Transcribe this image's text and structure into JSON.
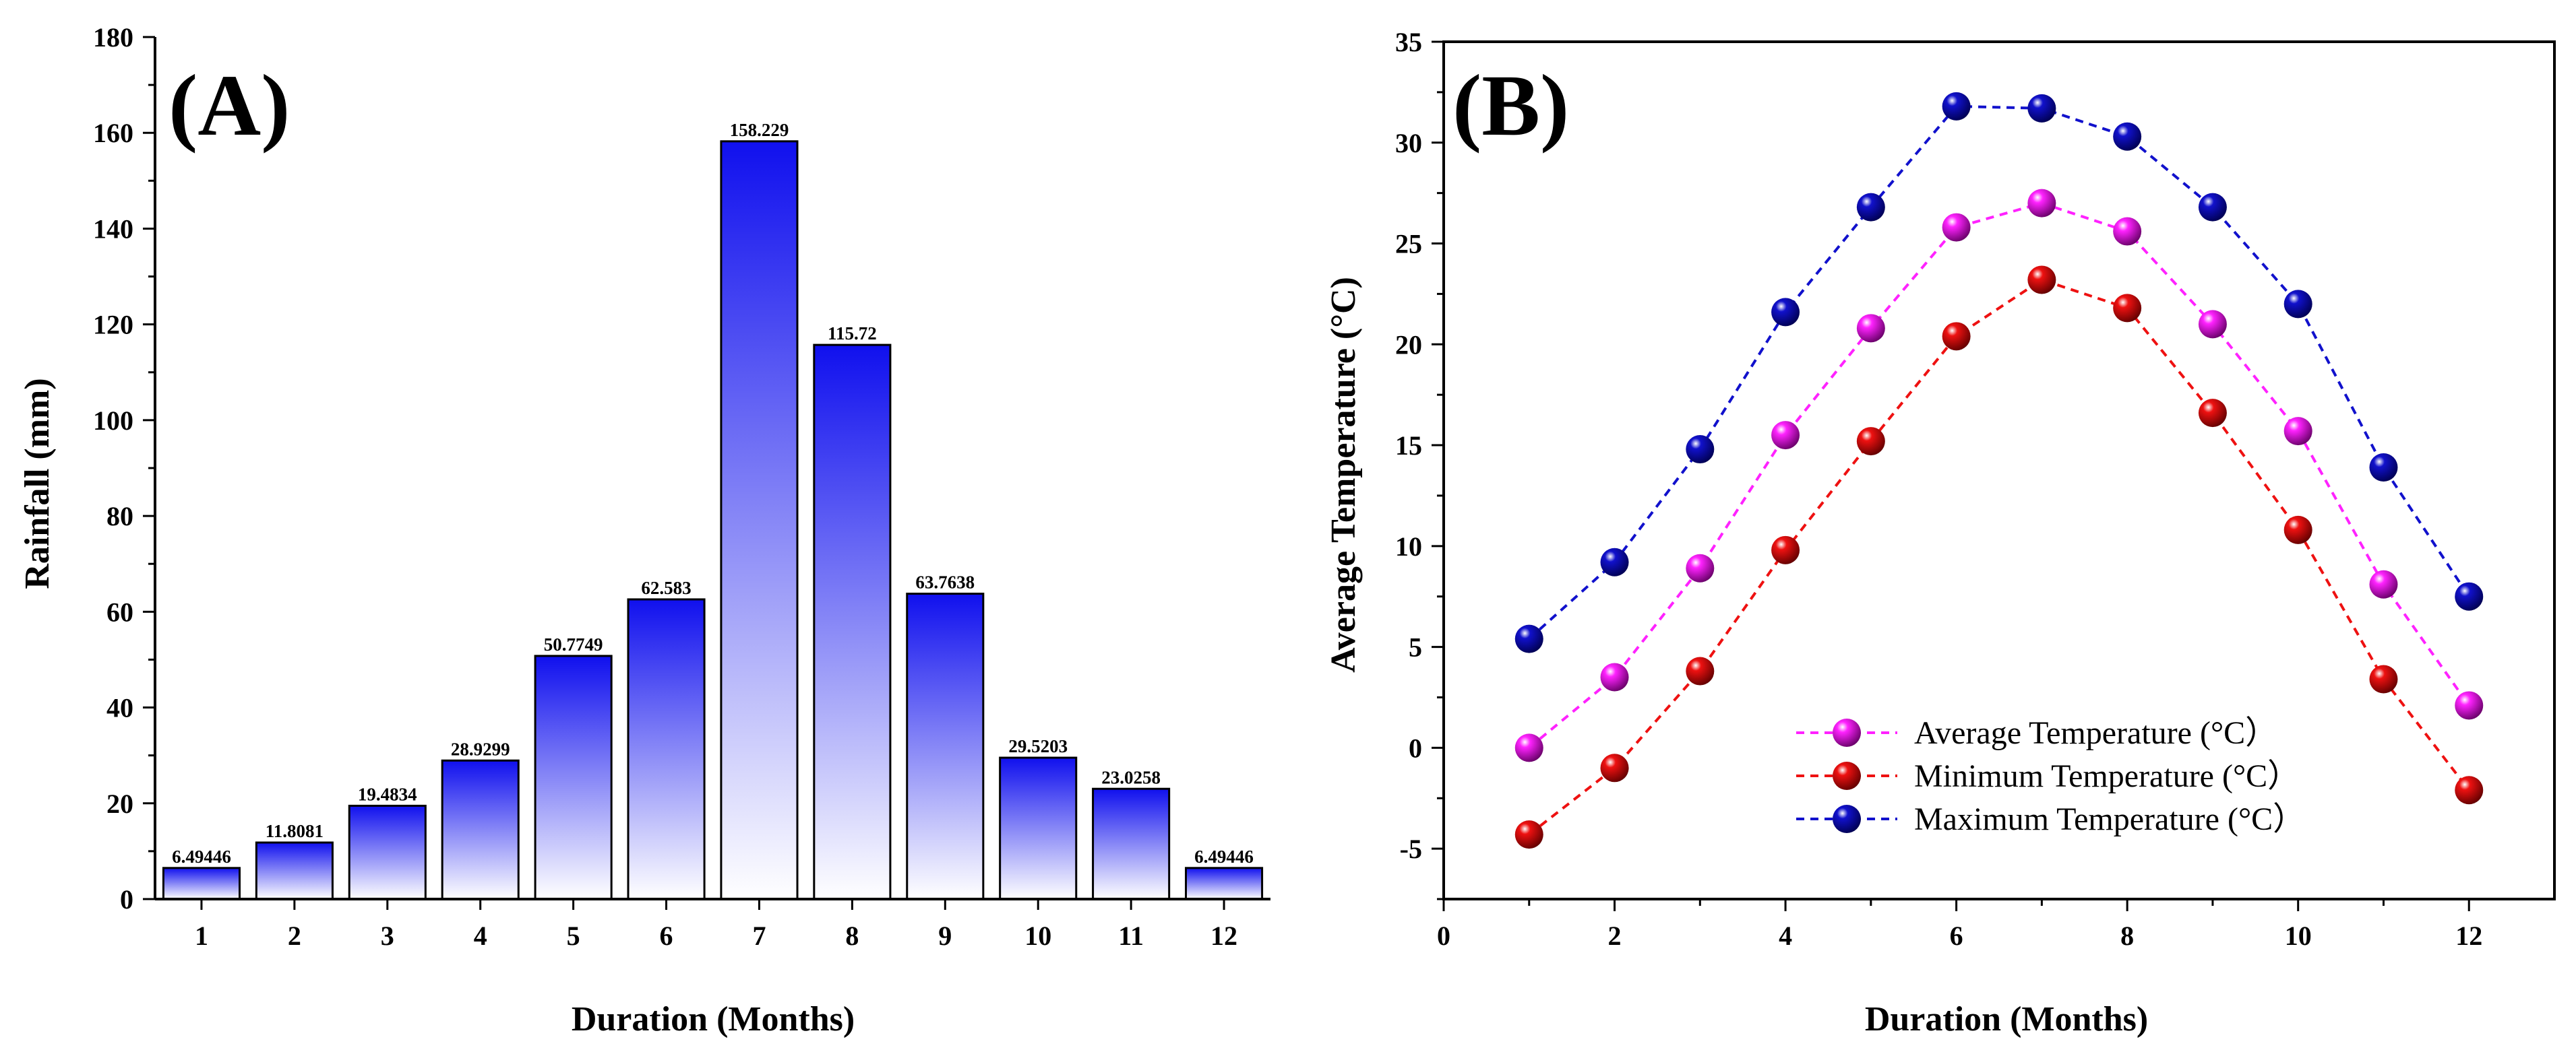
{
  "chart_data": [
    {
      "type": "bar",
      "panel_label": "(A)",
      "xlabel": "Duration (Months)",
      "ylabel": "Rainfall (mm)",
      "categories": [
        "1",
        "2",
        "3",
        "4",
        "5",
        "6",
        "7",
        "8",
        "9",
        "10",
        "11",
        "12"
      ],
      "values": [
        6.49446,
        11.8081,
        19.4834,
        28.9299,
        50.7749,
        62.583,
        158.229,
        115.72,
        63.7638,
        29.5203,
        23.0258,
        6.49446
      ],
      "value_labels": [
        "6.49446",
        "11.8081",
        "19.4834",
        "28.9299",
        "50.7749",
        "62.583",
        "158.229",
        "115.72",
        "63.7638",
        "29.5203",
        "23.0258",
        "6.49446"
      ],
      "ylim": [
        0,
        180
      ],
      "yticks": [
        0,
        20,
        40,
        60,
        80,
        100,
        120,
        140,
        160,
        180
      ],
      "ytick_labels": [
        "0",
        "20",
        "40",
        "60",
        "80",
        "100",
        "120",
        "140",
        "160",
        "180"
      ],
      "grid": false,
      "colors": {
        "bar_top": "#1010ee",
        "bar_bottom": "#ffffff",
        "bar_edge": "#000000"
      }
    },
    {
      "type": "line",
      "panel_label": "(B)",
      "xlabel": "Duration (Months)",
      "ylabel": "Average Temperature (°C)",
      "xlim": [
        0,
        13
      ],
      "ylim": [
        -7.5,
        35
      ],
      "xticks": [
        0,
        2,
        4,
        6,
        8,
        10,
        12
      ],
      "xtick_labels": [
        "0",
        "2",
        "4",
        "6",
        "8",
        "10",
        "12"
      ],
      "yticks": [
        -5,
        0,
        5,
        10,
        15,
        20,
        25,
        30,
        35
      ],
      "ytick_labels": [
        "-5",
        "0",
        "5",
        "10",
        "15",
        "20",
        "25",
        "30",
        "35"
      ],
      "x": [
        1,
        2,
        3,
        4,
        5,
        6,
        7,
        8,
        9,
        10,
        11,
        12
      ],
      "series": [
        {
          "name": "Average Temperature (°C）",
          "color": "#ff22ff",
          "values": [
            0,
            3.5,
            8.9,
            15.5,
            20.8,
            25.8,
            27.0,
            25.6,
            21.0,
            15.7,
            8.1,
            2.1
          ]
        },
        {
          "name": "Minimum Temperature (°C）",
          "color": "#ee1111",
          "values": [
            -4.3,
            -1.0,
            3.8,
            9.8,
            15.2,
            20.4,
            23.2,
            21.8,
            16.6,
            10.8,
            3.4,
            -2.1
          ]
        },
        {
          "name": "Maximum Temperature (°C）",
          "color": "#1111cc",
          "values": [
            5.4,
            9.2,
            14.8,
            21.6,
            26.8,
            31.8,
            31.7,
            30.3,
            26.8,
            22.0,
            13.9,
            7.5
          ]
        }
      ],
      "legend": "bottom-center",
      "grid": false
    }
  ]
}
